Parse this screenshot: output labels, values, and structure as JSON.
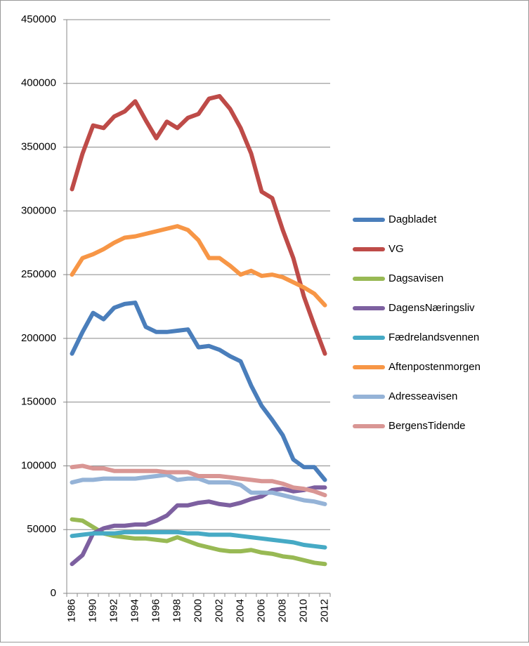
{
  "chart_data": {
    "type": "line",
    "categories": [
      "1986",
      null,
      "1990",
      null,
      "1992",
      null,
      "1994",
      null,
      "1996",
      null,
      "1998",
      null,
      "2000",
      null,
      "2002",
      null,
      "2004",
      null,
      "2006",
      null,
      "2008",
      null,
      "2010",
      null,
      "2012"
    ],
    "ylim": [
      0,
      450000
    ],
    "yticks": [
      0,
      50000,
      100000,
      150000,
      200000,
      250000,
      300000,
      350000,
      400000,
      450000
    ],
    "grid": true,
    "legend": "right",
    "series": [
      {
        "name": "Dagbladet",
        "color": "#4a7ebb",
        "values": [
          188000,
          205000,
          220000,
          215000,
          224000,
          227000,
          228000,
          209000,
          205000,
          205000,
          206000,
          207000,
          193000,
          194000,
          191000,
          186000,
          182000,
          163000,
          147000,
          136000,
          124000,
          105000,
          99000,
          99000,
          89000
        ]
      },
      {
        "name": "VG",
        "color": "#be4b48",
        "values": [
          317000,
          345000,
          367000,
          365000,
          374000,
          378000,
          386000,
          371000,
          357000,
          370000,
          365000,
          373000,
          376000,
          388000,
          390000,
          380000,
          365000,
          345000,
          315000,
          310000,
          285000,
          263000,
          233000,
          210000,
          188000
        ]
      },
      {
        "name": "Dagsavisen",
        "color": "#98b954",
        "values": [
          58000,
          57000,
          52000,
          47000,
          45000,
          44000,
          43000,
          43000,
          42000,
          41000,
          44000,
          41000,
          38000,
          36000,
          34000,
          33000,
          33000,
          34000,
          32000,
          31000,
          29000,
          28000,
          26000,
          24000,
          23000
        ]
      },
      {
        "name": "DagensNæringsliv",
        "color": "#7d60a0",
        "values": [
          23000,
          30000,
          47000,
          51000,
          53000,
          53000,
          54000,
          54000,
          57000,
          61000,
          69000,
          69000,
          71000,
          72000,
          70000,
          69000,
          71000,
          74000,
          76000,
          81000,
          82000,
          80000,
          81000,
          83000,
          83000
        ]
      },
      {
        "name": "Fædrelandsvennen",
        "color": "#46aac5",
        "values": [
          45000,
          46000,
          47000,
          47000,
          47000,
          48000,
          48000,
          48000,
          48000,
          48000,
          48000,
          47000,
          47000,
          46000,
          46000,
          46000,
          45000,
          44000,
          43000,
          42000,
          41000,
          40000,
          38000,
          37000,
          36000
        ]
      },
      {
        "name": "Aftenpostenmorgen",
        "color": "#f79646",
        "values": [
          250000,
          263000,
          266000,
          270000,
          275000,
          279000,
          280000,
          282000,
          284000,
          286000,
          288000,
          285000,
          277000,
          263000,
          263000,
          257000,
          250000,
          253000,
          249000,
          250000,
          248000,
          244000,
          240000,
          235000,
          226000
        ]
      },
      {
        "name": "Adresseavisen",
        "color": "#95b3d7",
        "values": [
          87000,
          89000,
          89000,
          90000,
          90000,
          90000,
          90000,
          91000,
          92000,
          93000,
          89000,
          90000,
          90000,
          87000,
          87000,
          87000,
          85000,
          79000,
          79000,
          79000,
          77000,
          75000,
          73000,
          72000,
          70000
        ]
      },
      {
        "name": "BergensTidende",
        "color": "#d99694",
        "values": [
          99000,
          100000,
          98000,
          98000,
          96000,
          96000,
          96000,
          96000,
          96000,
          95000,
          95000,
          95000,
          92000,
          92000,
          92000,
          91000,
          90000,
          89000,
          88000,
          88000,
          86000,
          83000,
          82000,
          80000,
          77000
        ]
      }
    ]
  }
}
